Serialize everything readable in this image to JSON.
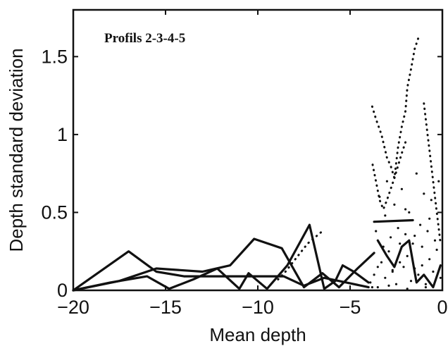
{
  "chart_data": {
    "type": "line",
    "title": "Profils 2-3-4-5",
    "xlabel": "Mean depth",
    "ylabel": "Depth standard deviation",
    "xlim": [
      -20,
      0
    ],
    "ylim": [
      0,
      1.8
    ],
    "xticks": [
      -20,
      -15,
      -10,
      -5,
      0
    ],
    "xtick_labels": [
      "−20",
      "−15",
      "−10",
      "−5",
      "0"
    ],
    "yticks": [
      0,
      0.5,
      1,
      1.5
    ],
    "ytick_labels": [
      "0",
      "0.5",
      "1",
      "1.5"
    ],
    "grid": false,
    "legend": "none",
    "colors": {
      "line": "#111111",
      "background": "#ffffff"
    },
    "series": [
      {
        "style": "solid",
        "x": [
          -20,
          -17,
          -15.5,
          -14,
          -12,
          -10.5,
          -10,
          -8.6,
          -7.5,
          -6.4,
          -5.2,
          -4.0
        ],
        "y": [
          0,
          0.25,
          0.12,
          0.09,
          0.09,
          0.09,
          0.09,
          0.09,
          0.03,
          0.08,
          0.05,
          0.02
        ]
      },
      {
        "style": "solid",
        "x": [
          -20,
          -17.5,
          -15.5,
          -13,
          -11.5,
          -10.2,
          -8.7,
          -7.5,
          -6.5,
          -5.6,
          -4.6,
          -3.7
        ],
        "y": [
          0,
          0.06,
          0.14,
          0.12,
          0.16,
          0.33,
          0.27,
          0.02,
          0.11,
          0.02,
          0.14,
          0.24
        ]
      },
      {
        "style": "solid",
        "x": [
          -20,
          -18,
          -16,
          -14.8,
          -13.5,
          -12.2,
          -11,
          -10.5,
          -9.5,
          -8.4,
          -7.2,
          -6.4,
          -5.8,
          -5.4,
          -4.8,
          -4.0
        ],
        "y": [
          0,
          0.05,
          0.09,
          0.01,
          0.07,
          0.14,
          0.01,
          0.11,
          0.01,
          0.16,
          0.42,
          0.01,
          0.06,
          0.16,
          0.12,
          0.05
        ]
      },
      {
        "style": "solid",
        "x": [
          -3.7,
          -1.6
        ],
        "y": [
          0.44,
          0.45
        ]
      },
      {
        "style": "solid",
        "x": [
          -3.5,
          -3.0,
          -2.6,
          -2.2,
          -1.8,
          -1.4,
          -1.0,
          -0.5,
          -0.1
        ],
        "y": [
          0.32,
          0.22,
          0.15,
          0.28,
          0.32,
          0.05,
          0.1,
          0.02,
          0.16
        ]
      },
      {
        "style": "dotted",
        "x": [
          -8.9,
          -8.5,
          -8.1,
          -7.7,
          -7.3,
          -6.9,
          -6.5
        ],
        "y": [
          0.07,
          0.12,
          0.18,
          0.24,
          0.3,
          0.34,
          0.38
        ]
      },
      {
        "style": "dotted",
        "x": [
          -3.8,
          -3.6,
          -3.3,
          -3.0,
          -2.8,
          -2.6,
          -2.4,
          -2.2,
          -2.0,
          -1.9,
          -1.7,
          -1.5,
          -1.3
        ],
        "y": [
          1.18,
          1.1,
          1.0,
          0.85,
          0.8,
          0.72,
          0.92,
          1.05,
          1.15,
          1.3,
          1.42,
          1.55,
          1.62
        ]
      },
      {
        "style": "dotted",
        "x": [
          -2.0,
          -2.2,
          -2.4,
          -2.6,
          -2.8,
          -3.0,
          -3.2,
          -3.4,
          -3.6,
          -3.8
        ],
        "y": [
          0.95,
          0.88,
          0.8,
          0.72,
          0.65,
          0.58,
          0.52,
          0.58,
          0.7,
          0.82
        ]
      },
      {
        "style": "dotted",
        "x": [
          -1.0,
          -0.9,
          -0.8,
          -0.7,
          -0.6,
          -0.5,
          -0.4,
          -0.3,
          -0.2,
          -0.1
        ],
        "y": [
          1.2,
          1.1,
          1.0,
          0.9,
          0.8,
          0.7,
          0.6,
          0.5,
          0.4,
          0.3
        ]
      }
    ],
    "scatter": {
      "x": [
        -3.9,
        -3.7,
        -3.5,
        -3.3,
        -3.1,
        -2.9,
        -2.7,
        -2.5,
        -2.3,
        -2.1,
        -1.9,
        -1.7,
        -1.5,
        -1.3,
        -1.1,
        -0.9,
        -0.7,
        -0.5,
        -0.3,
        -0.1,
        -3.6,
        -3.2,
        -2.8,
        -2.4,
        -2.0,
        -1.6,
        -1.2,
        -0.8,
        -0.4,
        -3.4,
        -3.0,
        -2.6,
        -2.2,
        -1.8,
        -1.4,
        -1.0,
        -0.6,
        -0.2,
        -3.8,
        -2.9,
        -1.9,
        -0.9,
        -3.5,
        -2.3,
        -1.1,
        -3.1,
        -2.0,
        -0.7,
        -2.7,
        -1.5
      ],
      "y": [
        0.05,
        0.1,
        0.02,
        0.18,
        0.08,
        0.25,
        0.12,
        0.04,
        0.3,
        0.15,
        0.22,
        0.06,
        0.35,
        0.1,
        0.28,
        0.04,
        0.2,
        0.12,
        0.26,
        0.08,
        0.38,
        0.28,
        0.34,
        0.4,
        0.36,
        0.3,
        0.42,
        0.38,
        0.32,
        0.6,
        0.7,
        0.55,
        0.65,
        0.5,
        0.75,
        0.62,
        0.58,
        0.7,
        0.02,
        0.03,
        0.01,
        0.02,
        0.15,
        0.18,
        0.16,
        0.48,
        0.52,
        0.46,
        0.13,
        0.14
      ]
    }
  }
}
